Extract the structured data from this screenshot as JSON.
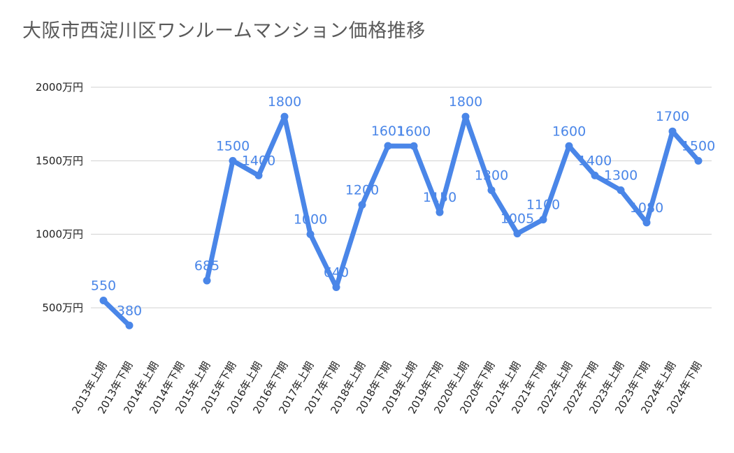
{
  "chart_data": {
    "type": "line",
    "title": "大阪市西淀川区ワンルームマンション価格推移",
    "xlabel": "",
    "ylabel": "",
    "ylim": [
      250,
      2000
    ],
    "y_ticks": [
      {
        "value": 500,
        "label": "500万円"
      },
      {
        "value": 1000,
        "label": "1000万円"
      },
      {
        "value": 1500,
        "label": "1500万円"
      },
      {
        "value": 2000,
        "label": "2000万円"
      }
    ],
    "categories": [
      "2013年上期",
      "2013年下期",
      "2014年上期",
      "2014年下期",
      "2015年上期",
      "2015年下期",
      "2016年上期",
      "2016年下期",
      "2017年上期",
      "2017年下期",
      "2018年上期",
      "2018年下期",
      "2019年上期",
      "2019年下期",
      "2020年上期",
      "2020年下期",
      "2021年上期",
      "2021年下期",
      "2022年上期",
      "2022年下期",
      "2023年上期",
      "2023年下期",
      "2024年上期",
      "2024年下期"
    ],
    "series": [
      {
        "color": "#4a86e8",
        "values": [
          550,
          380,
          null,
          null,
          685,
          1500,
          1400,
          1800,
          1000,
          640,
          1200,
          1601,
          1600,
          1150,
          1800,
          1300,
          1005,
          1100,
          1600,
          1400,
          1300,
          1080,
          1700,
          1500
        ],
        "labels": [
          "550",
          "380",
          "",
          "",
          "685",
          "1500",
          "1400",
          "1800",
          "1000",
          "640",
          "1200",
          "1601",
          "1600",
          "1150",
          "1800",
          "1300",
          "1005",
          "1100",
          "1600",
          "1400",
          "1300",
          "1080",
          "1700",
          "1500"
        ]
      }
    ],
    "grid": true,
    "legend": "none"
  }
}
